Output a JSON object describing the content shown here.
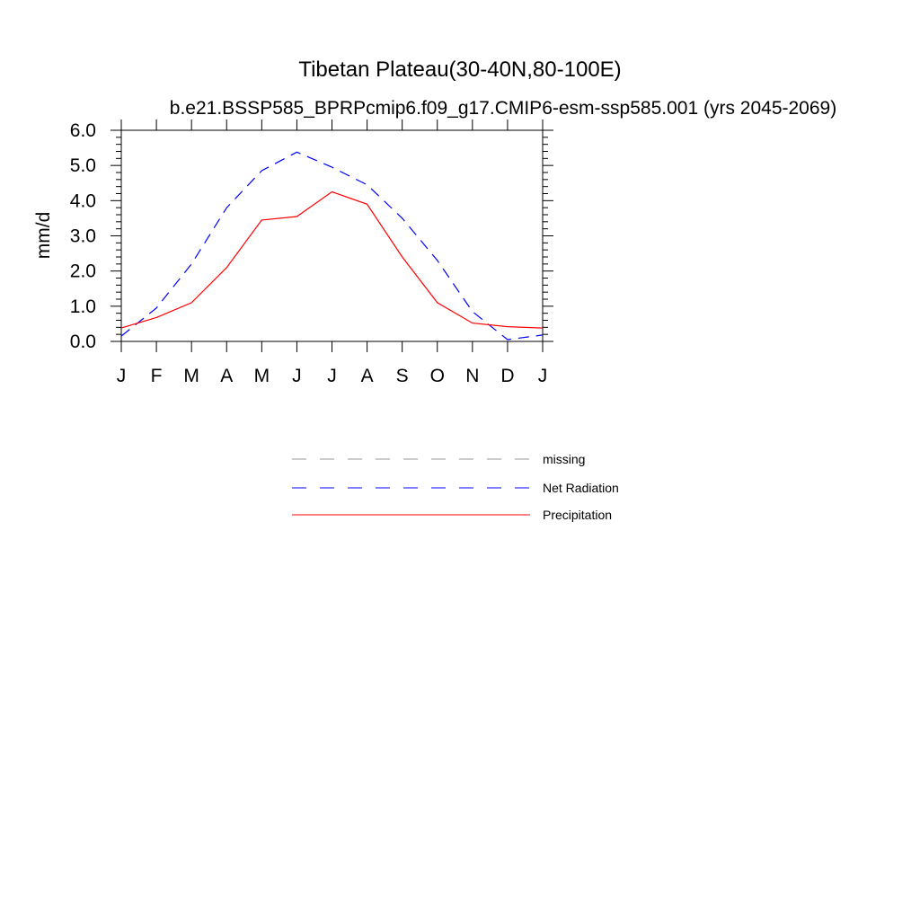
{
  "chart_data": {
    "type": "line",
    "title": "Tibetan Plateau(30-40N,80-100E)",
    "subtitle": "b.e21.BSSP585_BPRPcmip6.f09_g17.CMIP6-esm-ssp585.001 (yrs 2045-2069)",
    "ylabel": "mm/d",
    "xlabel": "",
    "x_tick_labels": [
      "J",
      "F",
      "M",
      "A",
      "M",
      "J",
      "J",
      "A",
      "S",
      "O",
      "N",
      "D",
      "J"
    ],
    "y_tick_labels": [
      "0.0",
      "1.0",
      "2.0",
      "3.0",
      "4.0",
      "5.0",
      "6.0"
    ],
    "ylim": [
      0,
      6
    ],
    "xlim": [
      0,
      12
    ],
    "series": [
      {
        "name": "Net Radiation",
        "color": "#0000ff",
        "dash": "dashed",
        "values": [
          0.15,
          0.95,
          2.2,
          3.8,
          4.85,
          5.38,
          4.95,
          4.45,
          3.5,
          2.3,
          0.85,
          0.05,
          0.18
        ]
      },
      {
        "name": "Precipitation",
        "color": "#ff0000",
        "dash": "solid",
        "values": [
          0.38,
          0.68,
          1.1,
          2.1,
          3.45,
          3.55,
          4.25,
          3.9,
          2.4,
          1.1,
          0.52,
          0.42,
          0.38
        ]
      }
    ],
    "legend": {
      "position": "bottom-center",
      "entries": [
        {
          "label": "missing",
          "color": "#999999",
          "dash": "dashed"
        },
        {
          "label": "Net Radiation",
          "color": "#0000ff",
          "dash": "dashed"
        },
        {
          "label": "Precipitation",
          "color": "#ff0000",
          "dash": "solid"
        }
      ]
    },
    "grid": false
  }
}
